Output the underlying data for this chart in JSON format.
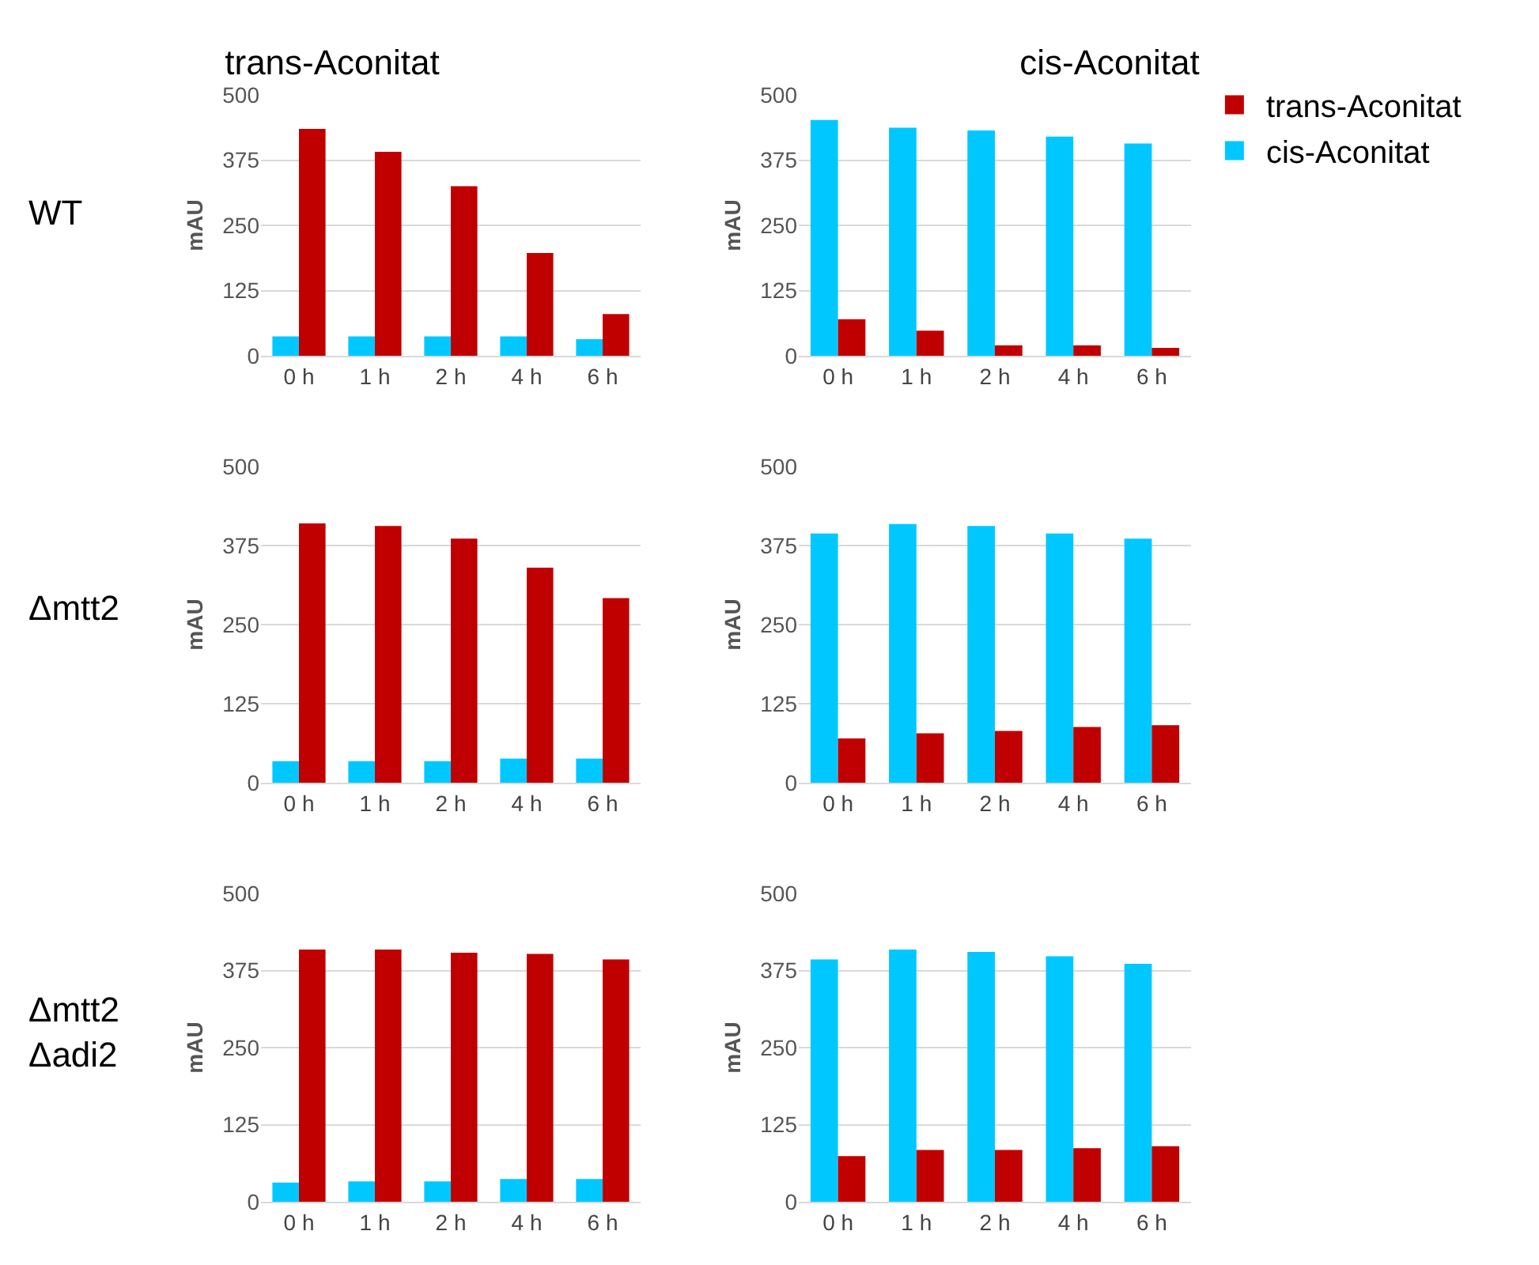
{
  "chart_data": [
    {
      "type": "bar",
      "title": "trans-Aconitat",
      "ylabel": "mAU",
      "annotations": [
        "WT"
      ],
      "categories": [
        "0 h",
        "1 h",
        "2 h",
        "4 h",
        "6 h"
      ],
      "series": [
        {
          "color": "#00c8ff",
          "values": [
            37,
            37,
            37,
            37,
            32
          ]
        },
        {
          "color": "#c00000",
          "values": [
            435,
            391,
            325,
            197,
            80
          ]
        }
      ],
      "ylim": [
        0,
        500
      ],
      "yticks": [
        0,
        125,
        250,
        375,
        500
      ],
      "grid": "y",
      "legend": false
    },
    {
      "type": "bar",
      "title": "cis-Aconitat",
      "ylabel": "mAU",
      "categories": [
        "0 h",
        "1 h",
        "2 h",
        "4 h",
        "6 h"
      ],
      "series": [
        {
          "name": "cis-Aconitat",
          "color": "#00c8ff",
          "values": [
            452,
            437,
            432,
            420,
            407
          ]
        },
        {
          "name": "trans-Aconitat",
          "color": "#c00000",
          "values": [
            70,
            48,
            20,
            20,
            15
          ]
        }
      ],
      "ylim": [
        0,
        500
      ],
      "yticks": [
        0,
        125,
        250,
        375,
        500
      ],
      "grid": "y",
      "legend": "top right"
    },
    {
      "type": "bar",
      "ylabel": "mAU",
      "annotations": [
        "Δmtt2"
      ],
      "categories": [
        "0 h",
        "1 h",
        "2 h",
        "4 h",
        "6 h"
      ],
      "series": [
        {
          "color": "#00c8ff",
          "values": [
            34,
            34,
            34,
            38,
            38
          ]
        },
        {
          "color": "#c00000",
          "values": [
            410,
            406,
            386,
            340,
            292
          ]
        }
      ],
      "ylim": [
        0,
        500
      ],
      "yticks": [
        0,
        125,
        250,
        375,
        500
      ],
      "grid": "y",
      "legend": false
    },
    {
      "type": "bar",
      "ylabel": "mAU",
      "categories": [
        "0 h",
        "1 h",
        "2 h",
        "4 h",
        "6 h"
      ],
      "series": [
        {
          "color": "#00c8ff",
          "values": [
            394,
            409,
            406,
            394,
            386
          ]
        },
        {
          "color": "#c00000",
          "values": [
            70,
            78,
            82,
            88,
            91
          ]
        }
      ],
      "ylim": [
        0,
        500
      ],
      "yticks": [
        0,
        125,
        250,
        375,
        500
      ],
      "grid": "y",
      "legend": false
    },
    {
      "type": "bar",
      "ylabel": "mAU",
      "annotations": [
        "Δmtt2\nΔadi2"
      ],
      "categories": [
        "0 h",
        "1 h",
        "2 h",
        "4 h",
        "6 h"
      ],
      "series": [
        {
          "color": "#00c8ff",
          "values": [
            31,
            33,
            33,
            37,
            37
          ]
        },
        {
          "color": "#c00000",
          "values": [
            409,
            409,
            404,
            402,
            393
          ]
        }
      ],
      "ylim": [
        0,
        500
      ],
      "yticks": [
        0,
        125,
        250,
        375,
        500
      ],
      "grid": "y",
      "legend": false
    },
    {
      "type": "bar",
      "ylabel": "mAU",
      "categories": [
        "0 h",
        "1 h",
        "2 h",
        "4 h",
        "6 h"
      ],
      "series": [
        {
          "color": "#00c8ff",
          "values": [
            393,
            409,
            405,
            398,
            386
          ]
        },
        {
          "color": "#c00000",
          "values": [
            74,
            84,
            84,
            87,
            90
          ]
        }
      ],
      "ylim": [
        0,
        500
      ],
      "yticks": [
        0,
        125,
        250,
        375,
        500
      ],
      "grid": "y",
      "legend": false
    }
  ]
}
